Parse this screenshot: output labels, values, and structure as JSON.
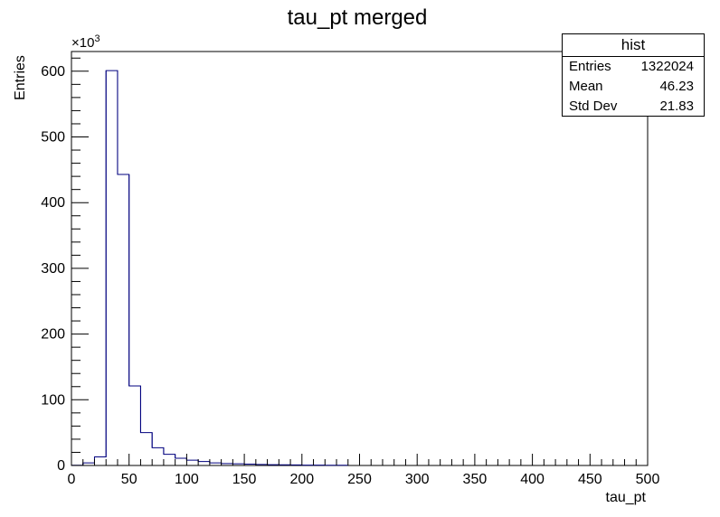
{
  "chart_data": {
    "type": "histogram",
    "title": "tau_pt merged",
    "xlabel": "tau_pt",
    "ylabel": "Entries",
    "y_multiplier": "×10",
    "y_multiplier_exp": "3",
    "xlim": [
      0,
      500
    ],
    "ylim": [
      0,
      630
    ],
    "x_ticks": [
      0,
      50,
      100,
      150,
      200,
      250,
      300,
      350,
      400,
      450,
      500
    ],
    "x_tick_labels": [
      "0",
      "50",
      "100",
      "150",
      "200",
      "250",
      "300",
      "350",
      "400",
      "450",
      "500"
    ],
    "y_ticks": [
      0,
      100,
      200,
      300,
      400,
      500,
      600
    ],
    "y_tick_labels": [
      "0",
      "100",
      "200",
      "300",
      "400",
      "500",
      "600"
    ],
    "bin_edges": [
      0,
      10,
      20,
      30,
      40,
      50,
      60,
      70,
      80,
      90,
      100,
      110,
      120,
      130,
      140,
      150,
      160,
      170,
      180,
      190,
      200,
      210,
      220,
      230,
      240
    ],
    "values": [
      0.3,
      4,
      13,
      601,
      443,
      121,
      50,
      27,
      17,
      11,
      8,
      6,
      4,
      3,
      2.5,
      2,
      1.5,
      1.2,
      1,
      0.8,
      0.6,
      0.5,
      0.4,
      0.3
    ],
    "grid": false,
    "line_color": "#00007f"
  },
  "stats": {
    "title": "hist",
    "rows": [
      {
        "label": "Entries",
        "value": "1322024"
      },
      {
        "label": "Mean",
        "value": "46.23"
      },
      {
        "label": "Std Dev",
        "value": "21.83"
      }
    ]
  }
}
